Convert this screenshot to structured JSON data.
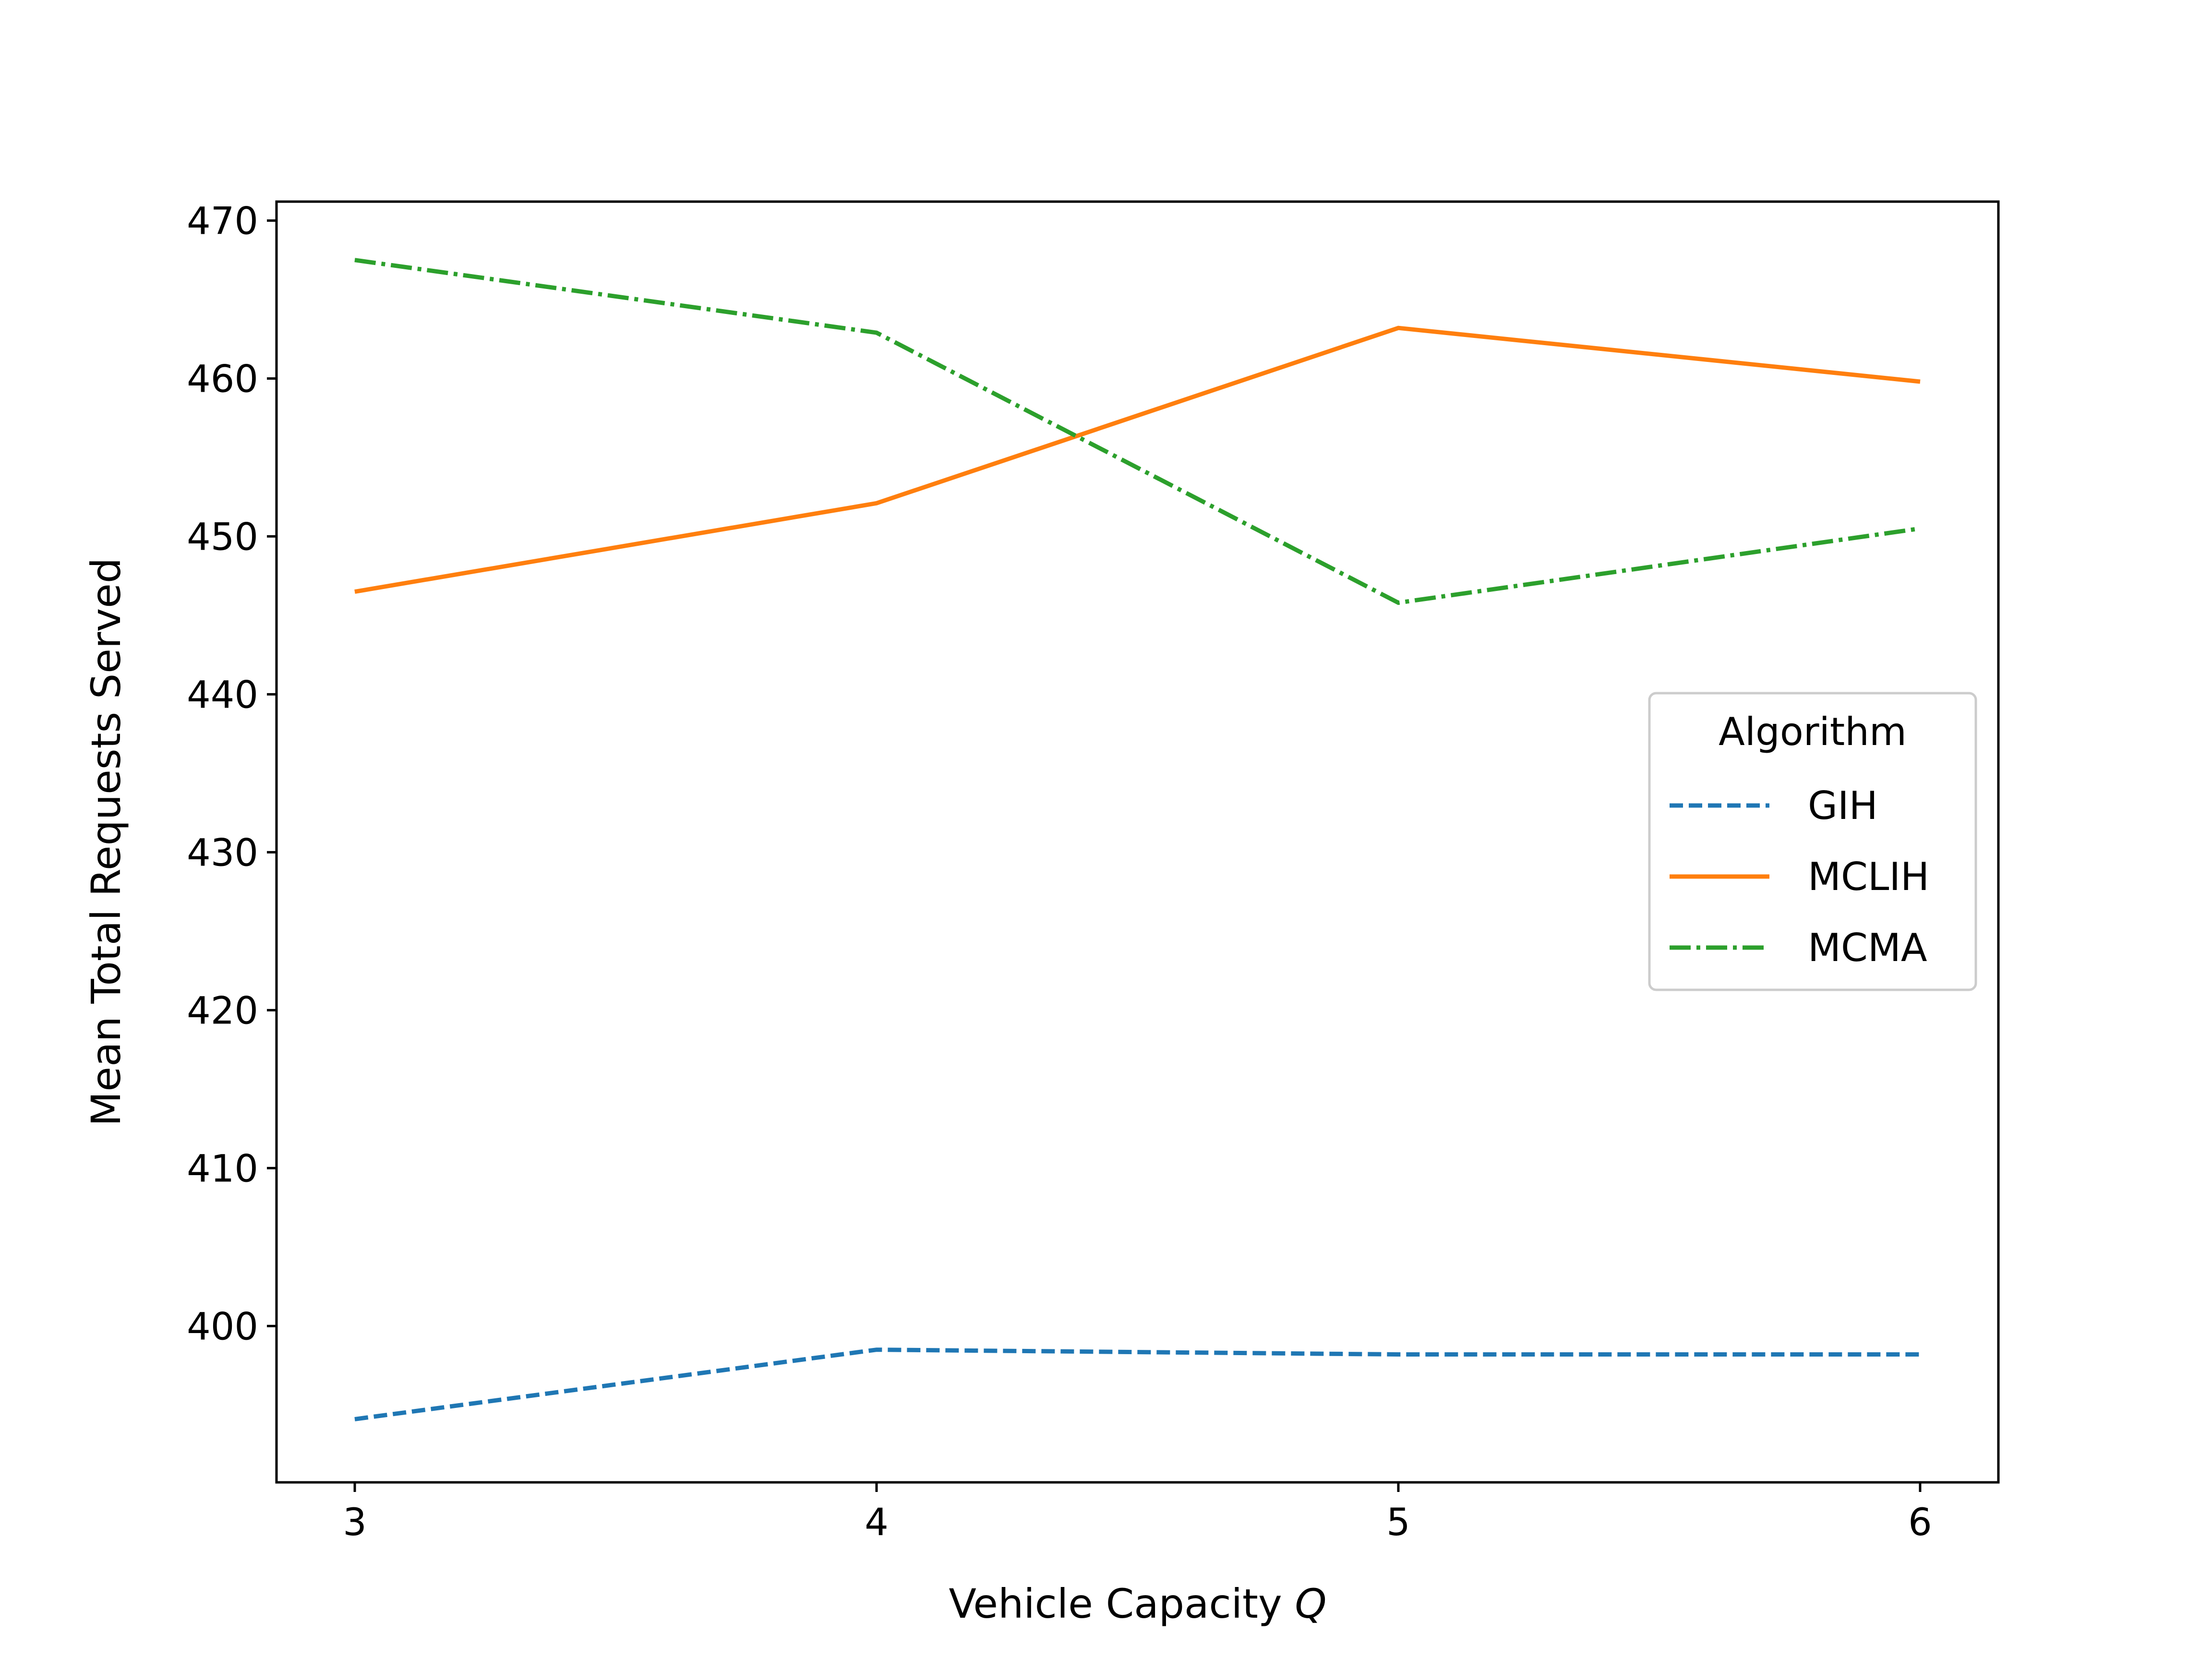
{
  "chart_data": {
    "type": "line",
    "title": "",
    "xlabel": "Vehicle Capacity",
    "xlabel_symbol": "Q",
    "ylabel": "Mean Total Requests Served",
    "x": [
      3,
      4,
      5,
      6
    ],
    "x_ticks": [
      "3",
      "4",
      "5",
      "6"
    ],
    "y_ticks": [
      "400",
      "410",
      "420",
      "430",
      "440",
      "450",
      "460",
      "470"
    ],
    "xlim": [
      2.85,
      6.15
    ],
    "ylim": [
      390.1,
      471.2
    ],
    "grid": false,
    "legend": {
      "title": "Algorithm",
      "placement": "center-right"
    },
    "series": [
      {
        "name": "GIH",
        "style": "dashed",
        "color": "#1f77b4",
        "values": [
          394.1,
          398.5,
          398.2,
          398.2
        ]
      },
      {
        "name": "MCLIH",
        "style": "solid",
        "color": "#ff7f0e",
        "values": [
          446.5,
          452.1,
          463.2,
          459.8
        ]
      },
      {
        "name": "MCMA",
        "style": "dashdot",
        "color": "#2ca02c",
        "values": [
          467.5,
          462.9,
          445.8,
          450.5
        ]
      }
    ]
  }
}
